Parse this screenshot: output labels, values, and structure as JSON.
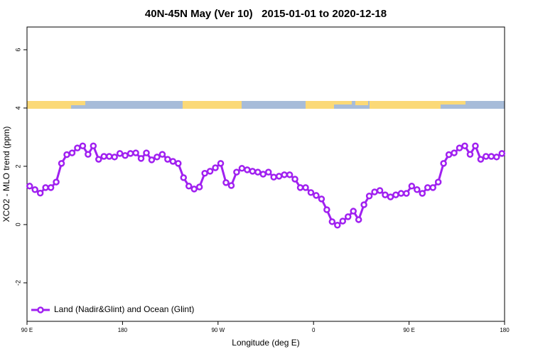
{
  "chart_data": {
    "type": "line",
    "title": "40N-45N May (Ver 10)   2015-01-01 to 2020-12-18",
    "x_label": "Longitude (deg E)",
    "y_label": "XCO2 - MLO trend (ppm)",
    "x": [
      92.5,
      97.5,
      102.5,
      107.5,
      112.5,
      117.5,
      122.5,
      127.5,
      132.5,
      137.5,
      142.5,
      147.5,
      152.5,
      157.5,
      162.5,
      167.5,
      172.5,
      177.5,
      182.5,
      187.5,
      192.5,
      197.5,
      202.5,
      207.5,
      212.5,
      217.5,
      222.5,
      227.5,
      232.5,
      237.5,
      242.5,
      247.5,
      252.5,
      257.5,
      262.5,
      267.5,
      272.5,
      277.5,
      282.5,
      287.5,
      292.5,
      297.5,
      302.5,
      307.5,
      312.5,
      317.5,
      322.5,
      327.5,
      332.5,
      337.5,
      342.5,
      347.5,
      352.5,
      357.5,
      362.5,
      367.5,
      372.5,
      377.5,
      382.5,
      387.5,
      392.5,
      397.5,
      402.5,
      407.5,
      412.5,
      417.5,
      422.5,
      427.5,
      432.5,
      437.5,
      442.5,
      447.5,
      452.5,
      457.5,
      462.5,
      467.5,
      472.5,
      477.5,
      482.5,
      487.5,
      492.5,
      497.5,
      502.5,
      507.5,
      512.5,
      517.5,
      522.5,
      527.5,
      532.5,
      537.5
    ],
    "series": [
      {
        "name": "Land (Nadir&Glint) and Ocean (Glint)",
        "color": "#a020f0",
        "values": [
          1.32,
          1.2,
          1.08,
          1.27,
          1.27,
          1.46,
          2.1,
          2.4,
          2.46,
          2.63,
          2.7,
          2.41,
          2.7,
          2.24,
          2.34,
          2.34,
          2.32,
          2.44,
          2.37,
          2.44,
          2.46,
          2.27,
          2.46,
          2.22,
          2.32,
          2.41,
          2.24,
          2.17,
          2.1,
          1.61,
          1.32,
          1.22,
          1.29,
          1.76,
          1.83,
          1.95,
          2.1,
          1.44,
          1.34,
          1.8,
          1.93,
          1.88,
          1.83,
          1.8,
          1.73,
          1.8,
          1.63,
          1.66,
          1.71,
          1.71,
          1.56,
          1.27,
          1.27,
          1.1,
          1.0,
          0.88,
          0.51,
          0.1,
          -0.02,
          0.12,
          0.27,
          0.46,
          0.17,
          0.68,
          0.98,
          1.12,
          1.17,
          1.02,
          0.95,
          1.02,
          1.07,
          1.07,
          1.32,
          1.2,
          1.07,
          1.27,
          1.27,
          1.46,
          2.1,
          2.4,
          2.46,
          2.63,
          2.7,
          2.41,
          2.7,
          2.24,
          2.34,
          2.34,
          2.32,
          2.44
        ]
      }
    ],
    "xlim": [
      90,
      540
    ],
    "xticks": [
      {
        "value": 90,
        "label": "90 E"
      },
      {
        "value": 180,
        "label": "180"
      },
      {
        "value": 270,
        "label": "90 W"
      },
      {
        "value": 360,
        "label": "0"
      },
      {
        "value": 450,
        "label": "90 E"
      },
      {
        "value": 540,
        "label": "180"
      }
    ],
    "ylim": [
      -3.32,
      6.78
    ],
    "yticks": [
      -2,
      0,
      2,
      4,
      6
    ],
    "legend": "bottom-left",
    "grid": false
  }
}
